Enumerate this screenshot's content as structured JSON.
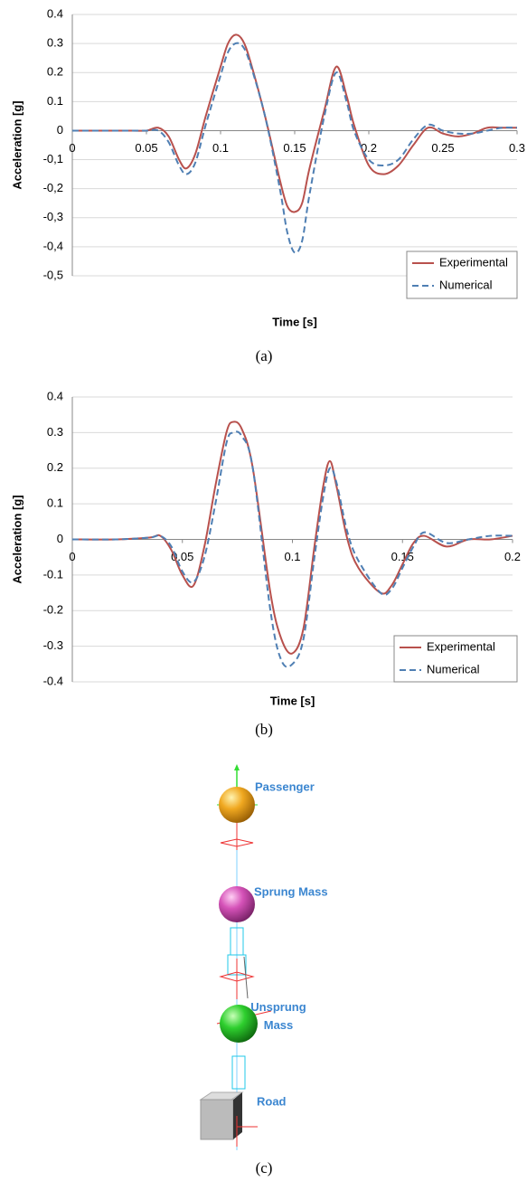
{
  "chart_data": [
    {
      "type": "line",
      "x_label": "Time [s]",
      "y_label": "Acceleration [g]",
      "x": [
        0,
        0.02,
        0.04,
        0.05,
        0.058,
        0.065,
        0.072,
        0.077,
        0.083,
        0.09,
        0.1,
        0.105,
        0.11,
        0.115,
        0.12,
        0.13,
        0.14,
        0.145,
        0.15,
        0.155,
        0.16,
        0.17,
        0.178,
        0.185,
        0.19,
        0.2,
        0.21,
        0.22,
        0.23,
        0.24,
        0.25,
        0.26,
        0.27,
        0.28,
        0.29,
        0.3
      ],
      "series": [
        {
          "name": "Experimental",
          "color": "#b8514d",
          "dashed": false,
          "values": [
            0,
            0,
            0,
            0,
            0.01,
            -0.02,
            -0.1,
            -0.13,
            -0.08,
            0.05,
            0.22,
            0.3,
            0.33,
            0.31,
            0.24,
            0.05,
            -0.17,
            -0.26,
            -0.28,
            -0.25,
            -0.13,
            0.07,
            0.22,
            0.12,
            0.02,
            -0.12,
            -0.15,
            -0.12,
            -0.05,
            0.01,
            -0.01,
            -0.02,
            -0.01,
            0.01,
            0.01,
            0.01
          ]
        },
        {
          "name": "Numerical",
          "color": "#4f7fb3",
          "dashed": true,
          "values": [
            0,
            0,
            0,
            0,
            0,
            -0.04,
            -0.12,
            -0.15,
            -0.11,
            0.02,
            0.19,
            0.27,
            0.3,
            0.29,
            0.23,
            0.05,
            -0.2,
            -0.35,
            -0.42,
            -0.38,
            -0.22,
            0.05,
            0.2,
            0.1,
            0,
            -0.1,
            -0.12,
            -0.1,
            -0.03,
            0.02,
            0,
            -0.01,
            -0.01,
            0,
            0.01,
            0.01
          ]
        }
      ],
      "xlim": [
        0,
        0.3
      ],
      "ylim": [
        -0.5,
        0.4
      ],
      "xticks": [
        0,
        0.05,
        0.1,
        0.15,
        0.2,
        0.25,
        0.3
      ],
      "yticks": [
        0.4,
        0.3,
        0.2,
        0.1,
        0,
        {
          "value": -0.1,
          "label": "-0,1"
        },
        {
          "value": -0.2,
          "label": "-0,2"
        },
        {
          "value": -0.3,
          "label": "-0,3"
        },
        {
          "value": -0.4,
          "label": "-0,4"
        },
        {
          "value": -0.5,
          "label": "-0,5"
        }
      ],
      "grid": true,
      "legend": "lower right"
    },
    {
      "type": "line",
      "x_label": "Time [s]",
      "y_label": "Acceleration [g]",
      "x": [
        0,
        0.02,
        0.035,
        0.04,
        0.045,
        0.05,
        0.055,
        0.06,
        0.065,
        0.07,
        0.073,
        0.077,
        0.082,
        0.09,
        0.095,
        0.1,
        0.105,
        0.11,
        0.114,
        0.117,
        0.12,
        0.125,
        0.13,
        0.14,
        0.145,
        0.15,
        0.155,
        0.16,
        0.17,
        0.18,
        0.19,
        0.2
      ],
      "series": [
        {
          "name": "Experimental",
          "color": "#b8514d",
          "dashed": false,
          "values": [
            0,
            0,
            0.005,
            0.01,
            -0.03,
            -0.1,
            -0.13,
            -0.02,
            0.15,
            0.3,
            0.33,
            0.31,
            0.2,
            -0.15,
            -0.28,
            -0.32,
            -0.25,
            -0.02,
            0.15,
            0.22,
            0.15,
            0,
            -0.08,
            -0.15,
            -0.13,
            -0.07,
            -0.01,
            0.01,
            -0.02,
            0,
            0,
            0.01
          ]
        },
        {
          "name": "Numerical",
          "color": "#4f7fb3",
          "dashed": true,
          "values": [
            0,
            0,
            0.005,
            0.01,
            -0.02,
            -0.09,
            -0.12,
            -0.05,
            0.1,
            0.27,
            0.3,
            0.29,
            0.2,
            -0.2,
            -0.34,
            -0.35,
            -0.28,
            -0.05,
            0.12,
            0.2,
            0.16,
            0.02,
            -0.06,
            -0.15,
            -0.14,
            -0.08,
            -0.02,
            0.02,
            -0.01,
            0,
            0.01,
            0.01
          ]
        }
      ],
      "xlim": [
        0,
        0.2
      ],
      "ylim": [
        -0.4,
        0.4
      ],
      "xticks": [
        0,
        0.05,
        0.1,
        0.15,
        0.2
      ],
      "yticks": [
        0.4,
        0.3,
        0.2,
        0.1,
        0,
        -0.1,
        -0.2,
        -0.3,
        -0.4
      ],
      "grid": true,
      "legend": "lower right"
    }
  ],
  "captions": [
    "(a)",
    "(b)",
    "(c)"
  ],
  "diagram": {
    "labels": [
      "Passenger",
      "Sprung Mass",
      "Unsprung Mass",
      "Road"
    ]
  }
}
